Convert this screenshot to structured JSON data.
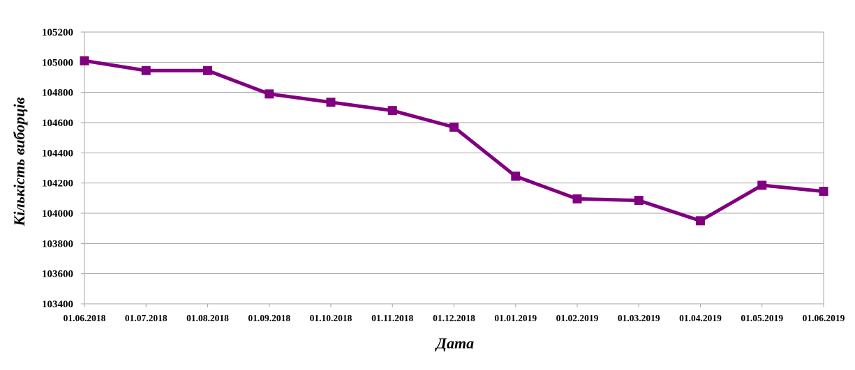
{
  "chart_data": {
    "type": "line",
    "title": "",
    "xlabel": "Дата",
    "ylabel": "Кількість виборців",
    "ylim": [
      103400,
      105200
    ],
    "yticks": [
      103400,
      103600,
      103800,
      104000,
      104200,
      104400,
      104600,
      104800,
      105000,
      105200
    ],
    "grid": true,
    "legend": "none",
    "categories": [
      "01.06.2018",
      "01.07.2018",
      "01.08.2018",
      "01.09.2018",
      "01.10.2018",
      "01.11.2018",
      "01.12.2018",
      "01.01.2019",
      "01.02.2019",
      "01.03.2019",
      "01.04.2019",
      "01.05.2019",
      "01.06.2019"
    ],
    "series": [
      {
        "values": [
          105010,
          104945,
          104945,
          104790,
          104735,
          104680,
          104570,
          104245,
          104095,
          104085,
          103950,
          104185,
          104145
        ],
        "color": "#800080",
        "marker": "square"
      }
    ]
  }
}
